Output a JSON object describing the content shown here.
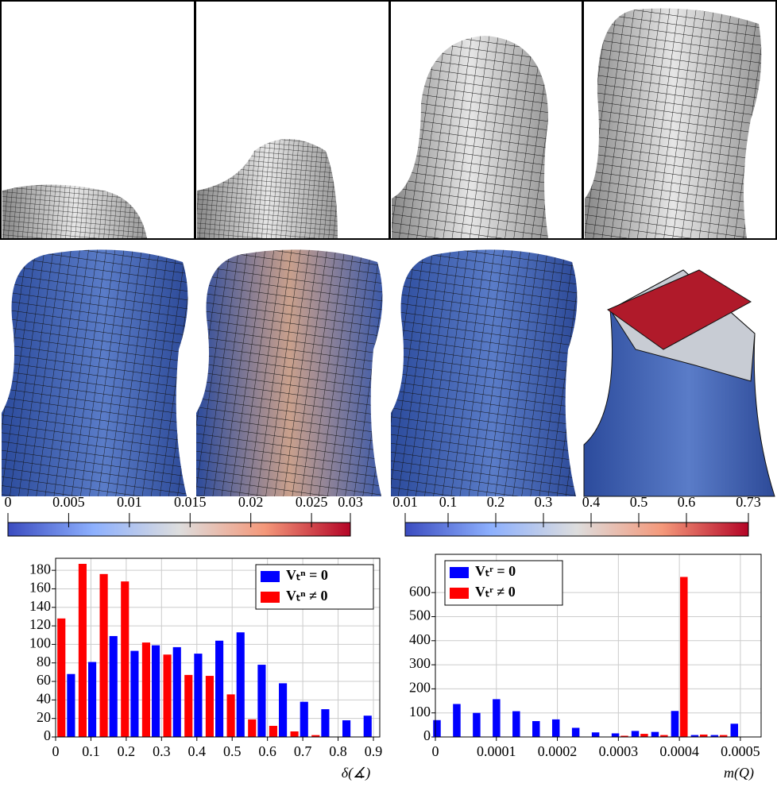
{
  "chart_data": [
    {
      "type": "colorbar",
      "xlim": [
        0,
        0.0282
      ],
      "xticks": [
        0,
        0.005,
        0.01,
        0.015,
        0.02,
        0.025,
        {
          "value": 0.0282,
          "label": "0.03"
        }
      ],
      "colors": [
        "#3b4cc0",
        "#8db0fe",
        "#dddddd",
        "#f4987a",
        "#b40426"
      ]
    },
    {
      "type": "colorbar",
      "xlim": [
        0.01,
        0.73
      ],
      "xticks": [
        0.01,
        0.1,
        0.2,
        0.3,
        0.4,
        0.5,
        0.6,
        0.73
      ],
      "colors": [
        "#3b4cc0",
        "#8db0fe",
        "#dddddd",
        "#f4987a",
        "#b40426"
      ]
    },
    {
      "type": "bar",
      "xlabel": "δ(∡)",
      "grid": true,
      "legend": "upper right",
      "xlim": [
        0,
        0.918
      ],
      "xticks": [
        0,
        0.1,
        0.2,
        0.3,
        0.4,
        0.5,
        0.6,
        0.7,
        0.8,
        0.9
      ],
      "ylim": [
        0,
        193
      ],
      "yticks": [
        0,
        20,
        40,
        60,
        80,
        100,
        120,
        140,
        160,
        180
      ],
      "x": [
        0.03,
        0.09,
        0.15,
        0.21,
        0.27,
        0.33,
        0.39,
        0.45,
        0.51,
        0.57,
        0.63,
        0.69,
        0.75,
        0.81,
        0.87
      ],
      "series": [
        {
          "name": "Vₜⁿ = 0",
          "color": "#0000ff",
          "values": [
            68,
            81,
            109,
            93,
            99,
            97,
            90,
            104,
            113,
            78,
            58,
            38,
            30,
            18,
            23
          ]
        },
        {
          "name": "Vₜⁿ ≠ 0",
          "color": "#ff0000",
          "values": [
            128,
            187,
            176,
            168,
            102,
            89,
            67,
            66,
            46,
            19,
            12,
            6,
            2,
            0,
            0
          ]
        }
      ]
    },
    {
      "type": "bar",
      "xlabel": "m(Q)",
      "grid": true,
      "legend": "upper left",
      "xlim": [
        0,
        0.000534
      ],
      "xticks": [
        0,
        0.0001,
        0.0002,
        0.0003,
        0.0004,
        0.0005
      ],
      "ylim": [
        0,
        759
      ],
      "yticks": [
        0,
        100,
        200,
        300,
        400,
        500,
        600
      ],
      "x": [
        1e-05,
        4.25e-05,
        7.5e-05,
        0.0001075,
        0.00014,
        0.0001725,
        0.000205,
        0.0002375,
        0.00027,
        0.0003025,
        0.000335,
        0.0003675,
        0.0004,
        0.0004325,
        0.000465,
        0.0004975
      ],
      "series": [
        {
          "name": "Vₜʳ = 0",
          "color": "#0000ff",
          "values": [
            70,
            137,
            100,
            157,
            107,
            66,
            73,
            38,
            19,
            15,
            25,
            21,
            108,
            8,
            8,
            55
          ]
        },
        {
          "name": "Vₜʳ ≠ 0",
          "color": "#ff0000",
          "values": [
            0,
            0,
            0,
            0,
            0,
            0,
            0,
            0,
            0,
            5,
            13,
            8,
            665,
            10,
            8,
            0
          ]
        }
      ]
    }
  ]
}
